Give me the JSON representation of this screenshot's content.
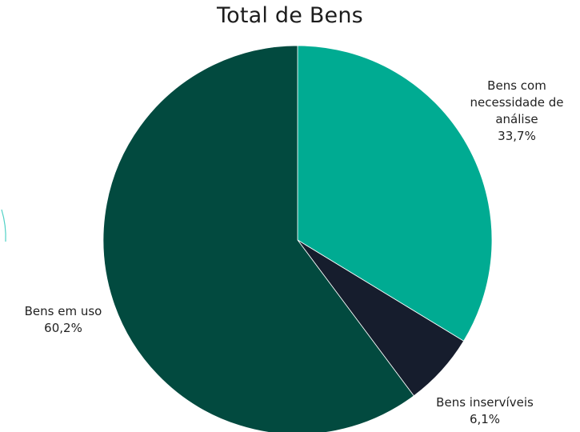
{
  "chart_data": {
    "type": "pie",
    "title": "Total de Bens",
    "slices": [
      {
        "name": "Bens com necessidade de análise",
        "label_lines": [
          "Bens com",
          "necessidade de",
          "análise"
        ],
        "value": 33.7,
        "value_label": "33,7%",
        "color": "#00ab92"
      },
      {
        "name": "Bens inservíveis",
        "label_lines": [
          "Bens inservíveis"
        ],
        "value": 6.1,
        "value_label": "6,1%",
        "color": "#161d2d"
      },
      {
        "name": "Bens em uso",
        "label_lines": [
          "Bens em uso"
        ],
        "value": 60.2,
        "value_label": "60,2%",
        "color": "#024a3f"
      }
    ],
    "start_angle_deg": 0,
    "direction": "clockwise",
    "legend": "none"
  }
}
